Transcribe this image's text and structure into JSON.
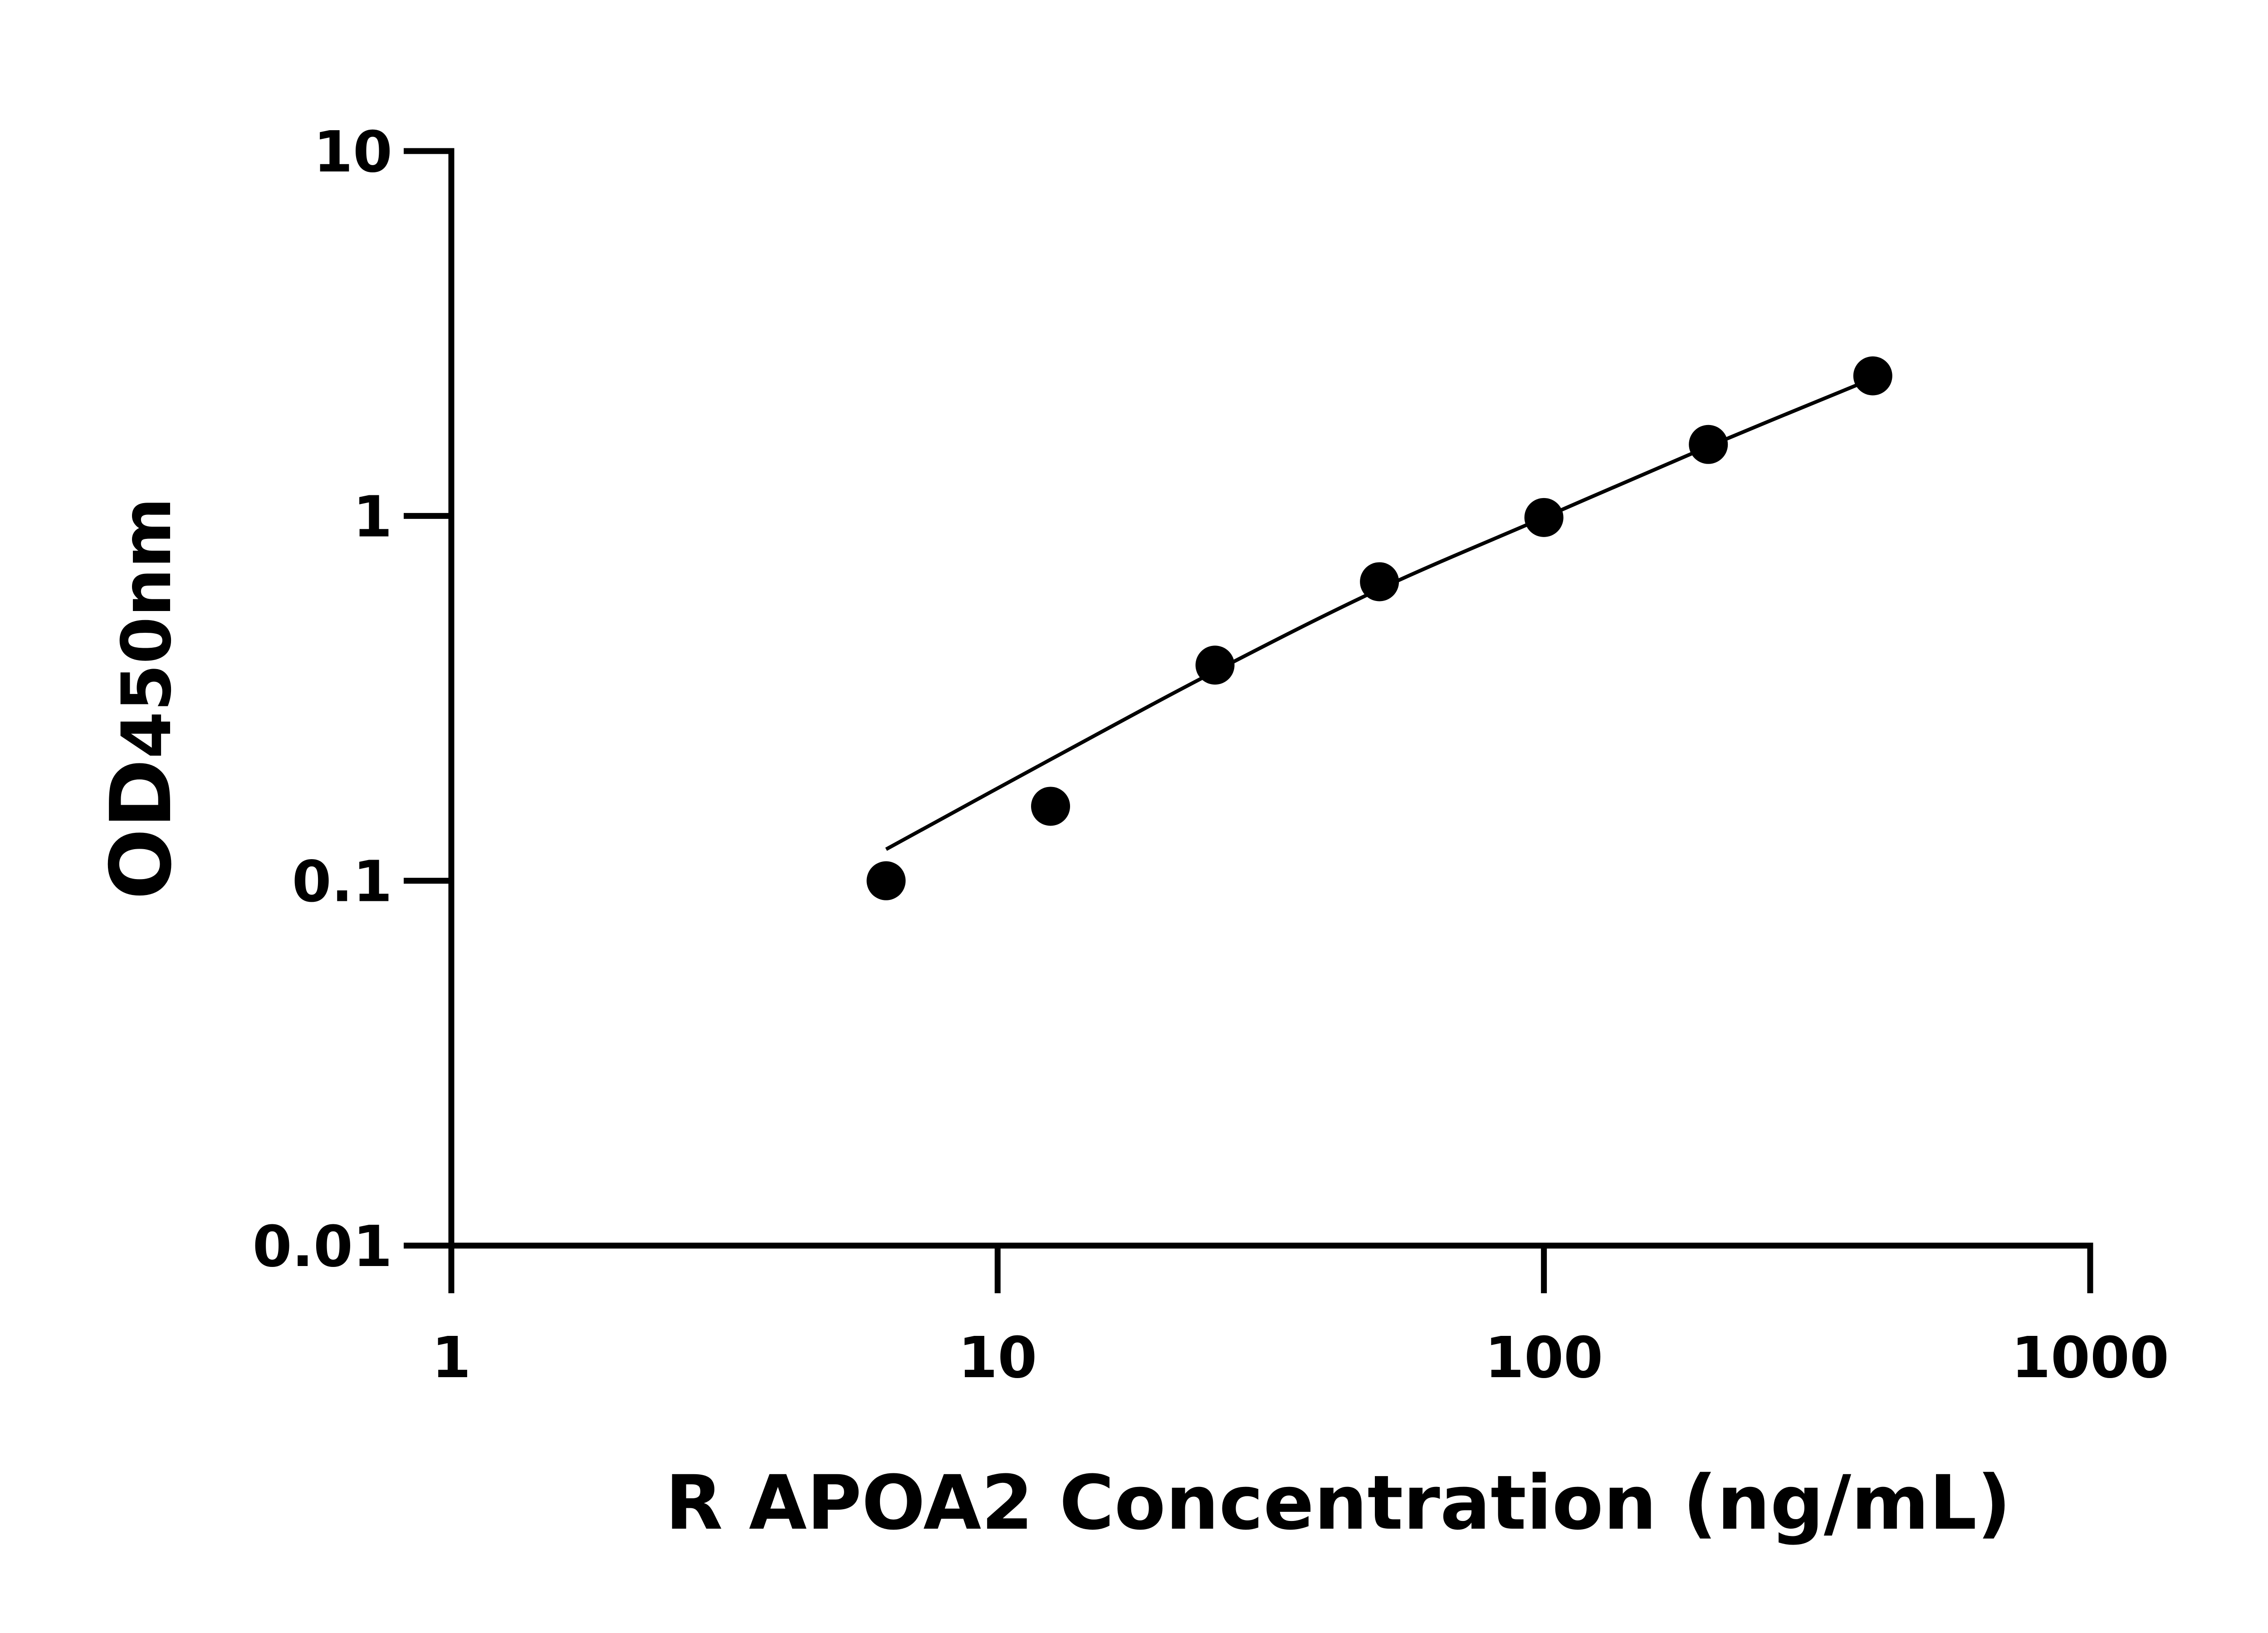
{
  "chart_data": {
    "type": "scatter",
    "title": "",
    "xlabel": "R APOA2 Concentration (ng/mL)",
    "ylabel_main": "OD",
    "ylabel_sub": "450nm",
    "xscale": "log",
    "yscale": "log",
    "xlim": [
      1,
      1000
    ],
    "ylim": [
      0.01,
      10
    ],
    "xticks": [
      "1",
      "10",
      "100",
      "1000"
    ],
    "yticks": [
      "0.01",
      "0.1",
      "1",
      "10"
    ],
    "grid": false,
    "legend": "none",
    "points": {
      "x": [
        6.25,
        12.5,
        25,
        50,
        100,
        200,
        400
      ],
      "y": [
        0.1,
        0.16,
        0.39,
        0.66,
        0.99,
        1.57,
        2.42
      ]
    },
    "fit_curve": {
      "x": [
        6.25,
        12.5,
        25,
        50,
        100,
        200,
        400
      ],
      "y": [
        0.122,
        0.215,
        0.375,
        0.63,
        0.99,
        1.55,
        2.38
      ]
    },
    "colors": {
      "marker": "#000000",
      "line": "#000000",
      "axis": "#000000"
    }
  }
}
